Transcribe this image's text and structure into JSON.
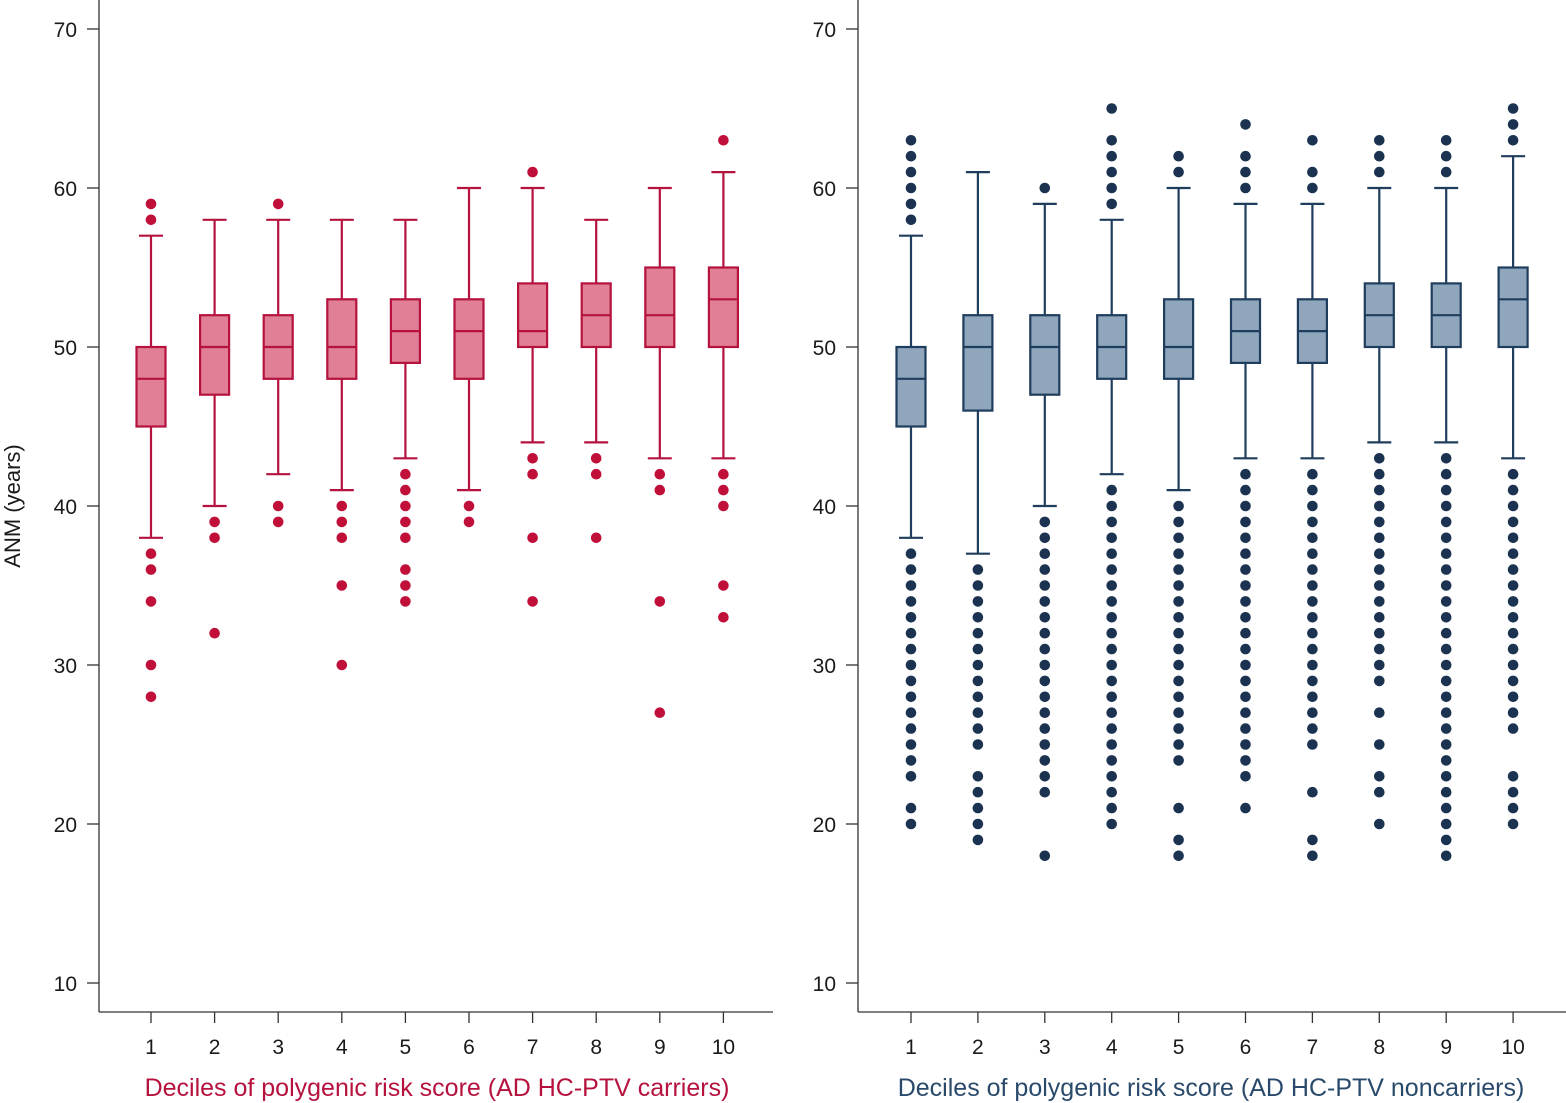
{
  "y_axis": {
    "label": "ANM (years)",
    "ticks": [
      10,
      20,
      30,
      40,
      50,
      60,
      70
    ]
  },
  "chart_data": [
    {
      "type": "box",
      "xlabel": "Deciles of polygenic risk score (AD HC-PTV carriers)",
      "ylim": [
        8,
        72
      ],
      "categories": [
        "1",
        "2",
        "3",
        "4",
        "5",
        "6",
        "7",
        "8",
        "9",
        "10"
      ],
      "colors": {
        "stroke": "#b5123e",
        "fill": "#e07f96",
        "outlier": "#c0103a",
        "label": "#b5123e"
      },
      "boxes": [
        {
          "q1": 45,
          "median": 48,
          "q3": 50,
          "whisker_low": 38,
          "whisker_high": 57,
          "outliers": [
            28,
            30,
            34,
            36,
            37,
            58,
            59
          ]
        },
        {
          "q1": 47,
          "median": 50,
          "q3": 52,
          "whisker_low": 40,
          "whisker_high": 58,
          "outliers": [
            32,
            38,
            39
          ]
        },
        {
          "q1": 48,
          "median": 50,
          "q3": 52,
          "whisker_low": 42,
          "whisker_high": 58,
          "outliers": [
            39,
            40,
            59
          ]
        },
        {
          "q1": 48,
          "median": 50,
          "q3": 53,
          "whisker_low": 41,
          "whisker_high": 58,
          "outliers": [
            30,
            35,
            38,
            39,
            40
          ]
        },
        {
          "q1": 49,
          "median": 51,
          "q3": 53,
          "whisker_low": 43,
          "whisker_high": 58,
          "outliers": [
            34,
            35,
            36,
            38,
            39,
            40,
            41,
            42
          ]
        },
        {
          "q1": 48,
          "median": 51,
          "q3": 53,
          "whisker_low": 41,
          "whisker_high": 60,
          "outliers": [
            39,
            40
          ]
        },
        {
          "q1": 50,
          "median": 51,
          "q3": 54,
          "whisker_low": 44,
          "whisker_high": 60,
          "outliers": [
            34,
            38,
            42,
            43,
            61
          ]
        },
        {
          "q1": 50,
          "median": 52,
          "q3": 54,
          "whisker_low": 44,
          "whisker_high": 58,
          "outliers": [
            38,
            42,
            43
          ]
        },
        {
          "q1": 50,
          "median": 52,
          "q3": 55,
          "whisker_low": 43,
          "whisker_high": 60,
          "outliers": [
            27,
            34,
            41,
            42
          ]
        },
        {
          "q1": 50,
          "median": 53,
          "q3": 55,
          "whisker_low": 43,
          "whisker_high": 61,
          "outliers": [
            33,
            35,
            40,
            41,
            42,
            63
          ]
        }
      ]
    },
    {
      "type": "box",
      "xlabel": "Deciles of polygenic risk score (AD HC-PTV noncarriers)",
      "ylim": [
        8,
        72
      ],
      "categories": [
        "1",
        "2",
        "3",
        "4",
        "5",
        "6",
        "7",
        "8",
        "9",
        "10"
      ],
      "colors": {
        "stroke": "#1f3d5c",
        "fill": "#8fa6bd",
        "outlier": "#1b3350",
        "label": "#2a4a6b"
      },
      "boxes": [
        {
          "q1": 45,
          "median": 48,
          "q3": 50,
          "whisker_low": 38,
          "whisker_high": 57,
          "outliers": [
            20,
            21,
            23,
            24,
            25,
            26,
            27,
            28,
            29,
            30,
            31,
            32,
            33,
            34,
            35,
            36,
            37,
            58,
            59,
            60,
            61,
            62,
            63
          ]
        },
        {
          "q1": 46,
          "median": 50,
          "q3": 52,
          "whisker_low": 37,
          "whisker_high": 61,
          "outliers": [
            19,
            20,
            21,
            22,
            23,
            25,
            26,
            27,
            28,
            29,
            30,
            31,
            32,
            33,
            34,
            35,
            36
          ]
        },
        {
          "q1": 47,
          "median": 50,
          "q3": 52,
          "whisker_low": 40,
          "whisker_high": 59,
          "outliers": [
            18,
            22,
            23,
            24,
            25,
            26,
            27,
            28,
            29,
            30,
            31,
            32,
            33,
            34,
            35,
            36,
            37,
            38,
            39,
            60
          ]
        },
        {
          "q1": 48,
          "median": 50,
          "q3": 52,
          "whisker_low": 42,
          "whisker_high": 58,
          "outliers": [
            20,
            21,
            22,
            23,
            24,
            25,
            26,
            27,
            28,
            29,
            30,
            31,
            32,
            33,
            34,
            35,
            36,
            37,
            38,
            39,
            40,
            41,
            59,
            60,
            61,
            62,
            63,
            65
          ]
        },
        {
          "q1": 48,
          "median": 50,
          "q3": 53,
          "whisker_low": 41,
          "whisker_high": 60,
          "outliers": [
            18,
            19,
            21,
            24,
            25,
            26,
            27,
            28,
            29,
            30,
            31,
            32,
            33,
            34,
            35,
            36,
            37,
            38,
            39,
            40,
            61,
            62
          ]
        },
        {
          "q1": 49,
          "median": 51,
          "q3": 53,
          "whisker_low": 43,
          "whisker_high": 59,
          "outliers": [
            21,
            23,
            24,
            25,
            26,
            27,
            28,
            29,
            30,
            31,
            32,
            33,
            34,
            35,
            36,
            37,
            38,
            39,
            40,
            41,
            42,
            60,
            61,
            62,
            64
          ]
        },
        {
          "q1": 49,
          "median": 51,
          "q3": 53,
          "whisker_low": 43,
          "whisker_high": 59,
          "outliers": [
            18,
            19,
            22,
            25,
            26,
            27,
            28,
            29,
            30,
            31,
            32,
            33,
            34,
            35,
            36,
            37,
            38,
            39,
            40,
            41,
            42,
            60,
            61,
            63
          ]
        },
        {
          "q1": 50,
          "median": 52,
          "q3": 54,
          "whisker_low": 44,
          "whisker_high": 60,
          "outliers": [
            20,
            22,
            23,
            25,
            27,
            29,
            30,
            31,
            32,
            33,
            34,
            35,
            36,
            37,
            38,
            39,
            40,
            41,
            42,
            43,
            61,
            62,
            63
          ]
        },
        {
          "q1": 50,
          "median": 52,
          "q3": 54,
          "whisker_low": 44,
          "whisker_high": 60,
          "outliers": [
            18,
            19,
            20,
            21,
            22,
            23,
            24,
            25,
            26,
            27,
            28,
            29,
            30,
            31,
            32,
            33,
            34,
            35,
            36,
            37,
            38,
            39,
            40,
            41,
            42,
            43,
            61,
            62,
            63
          ]
        },
        {
          "q1": 50,
          "median": 53,
          "q3": 55,
          "whisker_low": 43,
          "whisker_high": 62,
          "outliers": [
            20,
            21,
            22,
            23,
            26,
            27,
            28,
            29,
            30,
            31,
            32,
            33,
            34,
            35,
            36,
            37,
            38,
            39,
            40,
            41,
            42,
            63,
            64,
            65
          ]
        }
      ]
    }
  ]
}
